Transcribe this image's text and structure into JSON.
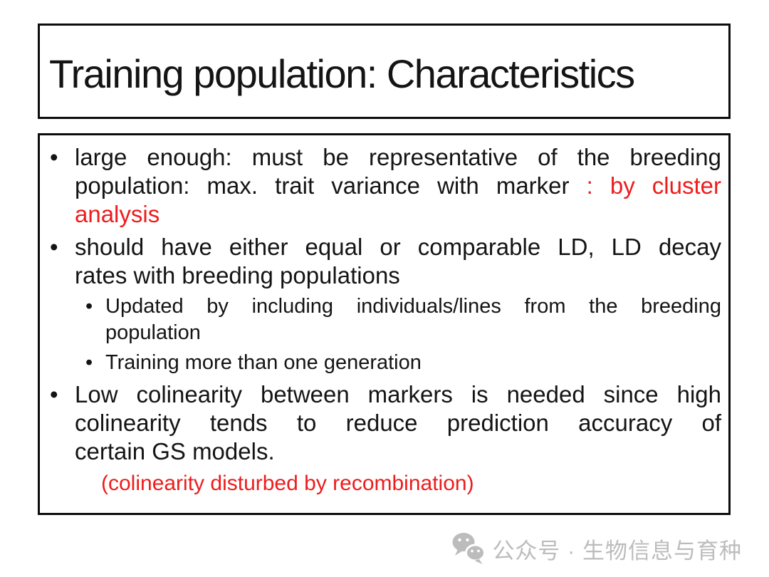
{
  "title": "Training population: Characteristics",
  "colors": {
    "text": "#141414",
    "accent_red": "#ee1c1c",
    "box_border": "#0d0d0d",
    "watermark_gray": "#bcbcbc"
  },
  "content": {
    "bullets": [
      {
        "level": 1,
        "marker": "•",
        "lines": [
          {
            "justify": true,
            "segments": [
              {
                "text": "large enough: must be representative of the breeding",
                "red": false
              }
            ]
          },
          {
            "justify": true,
            "segments": [
              {
                "text": "population: max. trait variance with marker",
                "red": false
              },
              {
                "text": " : by cluster",
                "red": true
              }
            ]
          },
          {
            "justify": false,
            "segments": [
              {
                "text": "analysis",
                "red": true
              }
            ]
          }
        ]
      },
      {
        "level": 1,
        "marker": "•",
        "lines": [
          {
            "justify": true,
            "segments": [
              {
                "text": "should have either equal or comparable LD, LD decay",
                "red": false
              }
            ]
          },
          {
            "justify": false,
            "segments": [
              {
                "text": "rates with breeding populations",
                "red": false
              }
            ]
          }
        ]
      },
      {
        "level": 2,
        "marker": "•",
        "lines": [
          {
            "justify": true,
            "segments": [
              {
                "text": "Updated by including individuals/lines from the breeding",
                "red": false
              }
            ]
          },
          {
            "justify": false,
            "segments": [
              {
                "text": "population",
                "red": false
              }
            ]
          }
        ]
      },
      {
        "level": 2,
        "marker": "•",
        "lines": [
          {
            "justify": false,
            "segments": [
              {
                "text": "Training more than one generation",
                "red": false
              }
            ]
          }
        ]
      },
      {
        "level": 1,
        "marker": "•",
        "lines": [
          {
            "justify": true,
            "segments": [
              {
                "text": "Low colinearity between markers is needed since high",
                "red": false
              }
            ]
          },
          {
            "justify": true,
            "segments": [
              {
                "text": "colinearity tends to reduce prediction accuracy of",
                "red": false
              }
            ]
          },
          {
            "justify": false,
            "segments": [
              {
                "text": "certain GS models.",
                "red": false
              }
            ]
          }
        ]
      },
      {
        "level": 3,
        "marker": "",
        "lines": [
          {
            "justify": false,
            "segments": [
              {
                "text": "(colinearity disturbed by recombination)",
                "red": true
              }
            ]
          }
        ]
      }
    ]
  },
  "watermark": {
    "icon": "wechat-icon",
    "text": "公众号 · 生物信息与育种"
  }
}
